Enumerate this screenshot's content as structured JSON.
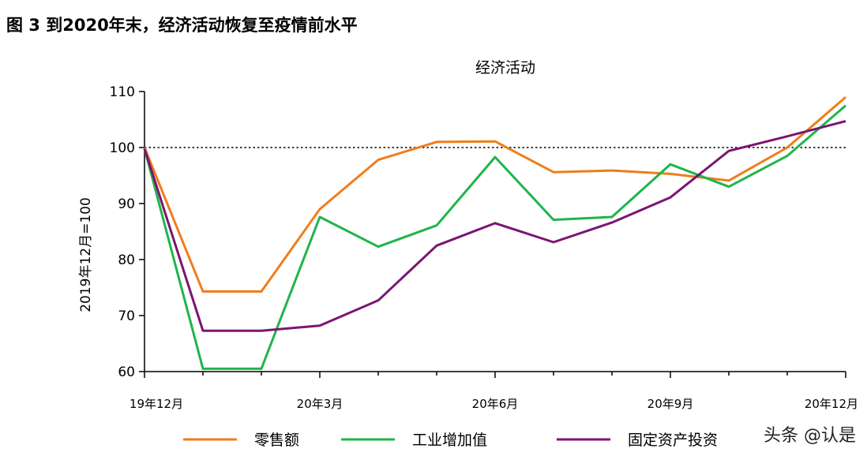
{
  "header": {
    "figure_title": "图 3 到2020年末，经济活动恢复至疫情前水平"
  },
  "watermark": "头条 @认是",
  "chart_data": {
    "type": "line",
    "title": "经济活动",
    "ylabel": "2019年12月=100",
    "xlabel": "",
    "ylim": [
      60,
      110
    ],
    "yticks": [
      60,
      70,
      80,
      90,
      100,
      110
    ],
    "x": [
      "19年12月",
      "20年1月",
      "20年2月",
      "20年3月",
      "20年4月",
      "20年5月",
      "20年6月",
      "20年7月",
      "20年8月",
      "20年9月",
      "20年10月",
      "20年11月",
      "20年12月"
    ],
    "x_tick_labels": [
      "19年12月",
      "20年3月",
      "20年6月",
      "20年9月",
      "20年12月"
    ],
    "x_tick_label_indices": [
      0,
      3,
      6,
      9,
      12
    ],
    "reference_line": {
      "y": 100,
      "style": "dotted"
    },
    "grid": false,
    "legend_position": "bottom",
    "series": [
      {
        "name": "零售额",
        "color": "#F07D1B",
        "values": [
          100,
          74.3,
          74.3,
          89,
          97.8,
          101,
          101.1,
          95.6,
          95.9,
          95.3,
          94.1,
          100,
          109
        ]
      },
      {
        "name": "工业增加值",
        "color": "#1FB54B",
        "values": [
          99.8,
          60.5,
          60.5,
          87.6,
          82.3,
          86.1,
          98.3,
          87.1,
          87.6,
          97,
          93,
          98.5,
          107.5
        ]
      },
      {
        "name": "固定资产投资",
        "color": "#7B1572",
        "values": [
          99.8,
          67.3,
          67.3,
          68.2,
          72.7,
          82.5,
          86.5,
          83.1,
          86.6,
          91.1,
          99.4,
          102,
          104.7
        ]
      }
    ]
  }
}
